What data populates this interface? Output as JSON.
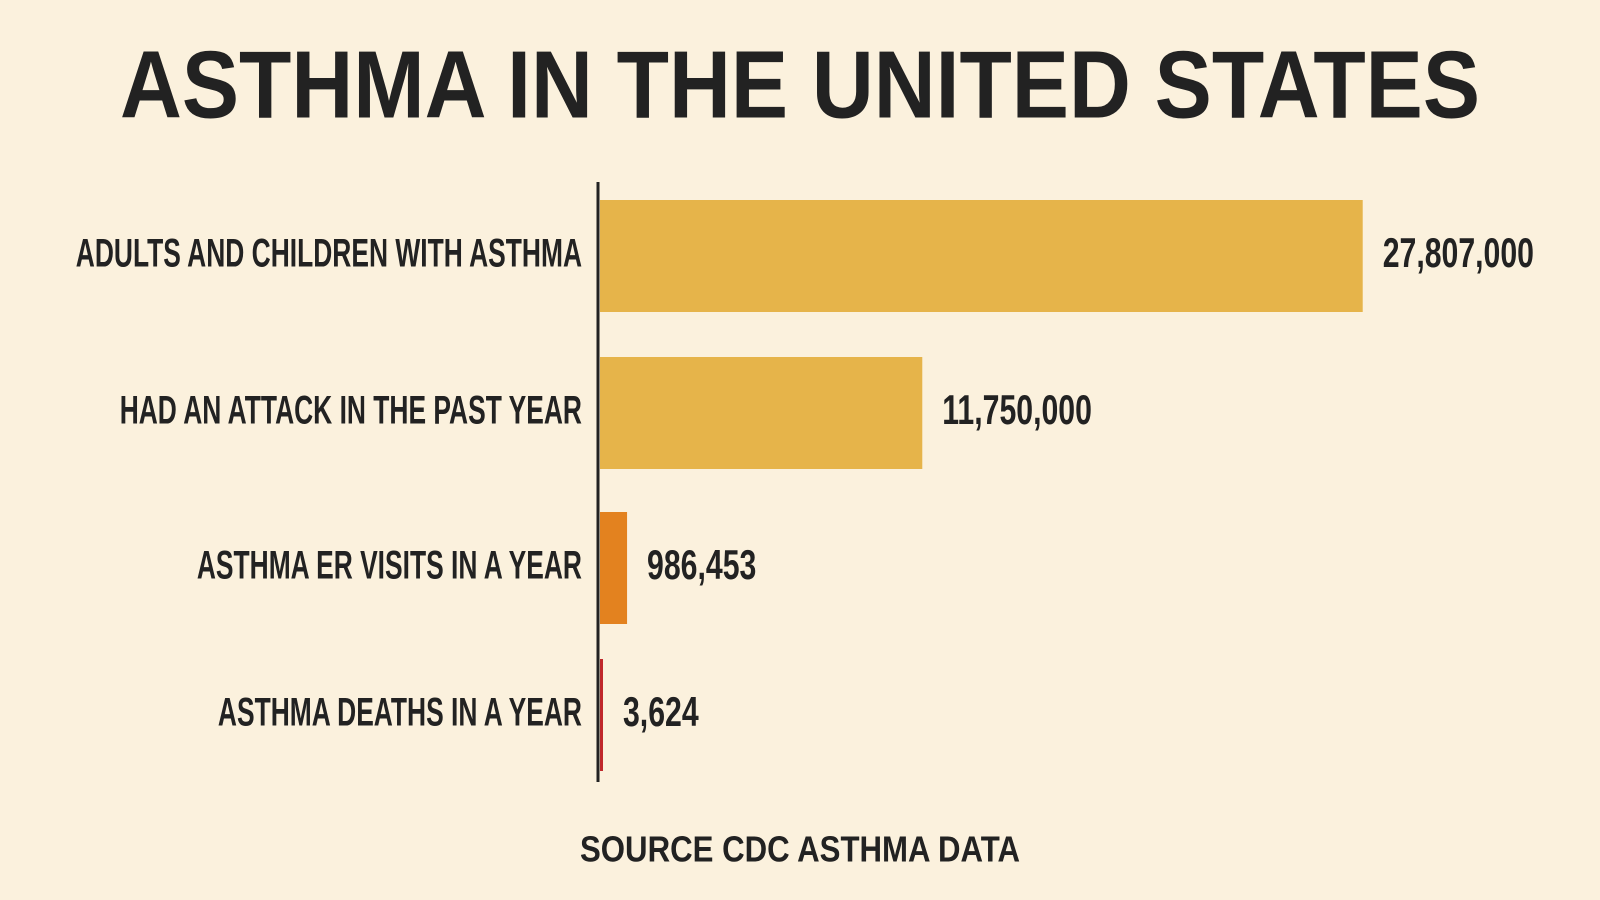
{
  "chart_data": {
    "type": "hbar",
    "title": "ASTHMA IN THE UNITED STATES",
    "categories": [
      "ADULTS AND CHILDREN WITH ASTHMA",
      "HAD AN ATTACK IN THE PAST YEAR",
      "ASTHMA ER VISITS IN A YEAR",
      "ASTHMA DEATHS IN A YEAR"
    ],
    "values": [
      27807000,
      11750000,
      986453,
      3624
    ],
    "value_labels": [
      "27,807,000",
      "11,750,000",
      "986,453",
      "3,624"
    ],
    "colors": [
      "#e6b44a",
      "#e6b44a",
      "#e3821f",
      "#c0282b"
    ],
    "xlim": [
      0,
      35000000
    ],
    "source": "SOURCE  CDC ASTHMA DATA"
  }
}
